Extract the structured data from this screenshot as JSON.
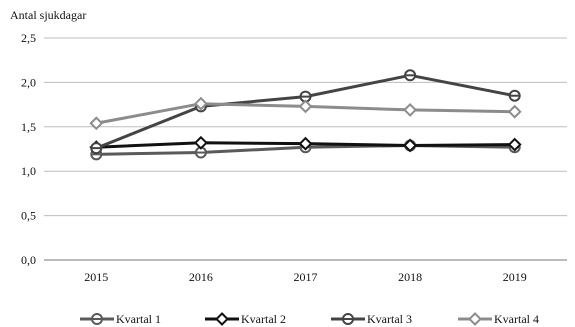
{
  "chart_data": {
    "type": "line",
    "ylabel": "Antal sjukdagar",
    "categories": [
      "2015",
      "2016",
      "2017",
      "2018",
      "2019"
    ],
    "ylim": [
      0,
      2.5
    ],
    "yticks": [
      "0,0",
      "0,5",
      "1,0",
      "1,5",
      "2,0",
      "2,5"
    ],
    "grid": true,
    "legend_position": "bottom",
    "series": [
      {
        "name": "Kvartal 1",
        "values": [
          1.19,
          1.21,
          1.27,
          1.29,
          1.27
        ],
        "color": "#5a5a5a",
        "marker": "circle"
      },
      {
        "name": "Kvartal 2",
        "values": [
          1.27,
          1.32,
          1.31,
          1.29,
          1.3
        ],
        "color": "#111111",
        "marker": "diamond"
      },
      {
        "name": "Kvartal 3",
        "values": [
          1.26,
          1.73,
          1.84,
          2.08,
          1.85
        ],
        "color": "#444444",
        "marker": "circle"
      },
      {
        "name": "Kvartal 4",
        "values": [
          1.54,
          1.76,
          1.73,
          1.69,
          1.67
        ],
        "color": "#8c8c8c",
        "marker": "diamond"
      }
    ]
  }
}
